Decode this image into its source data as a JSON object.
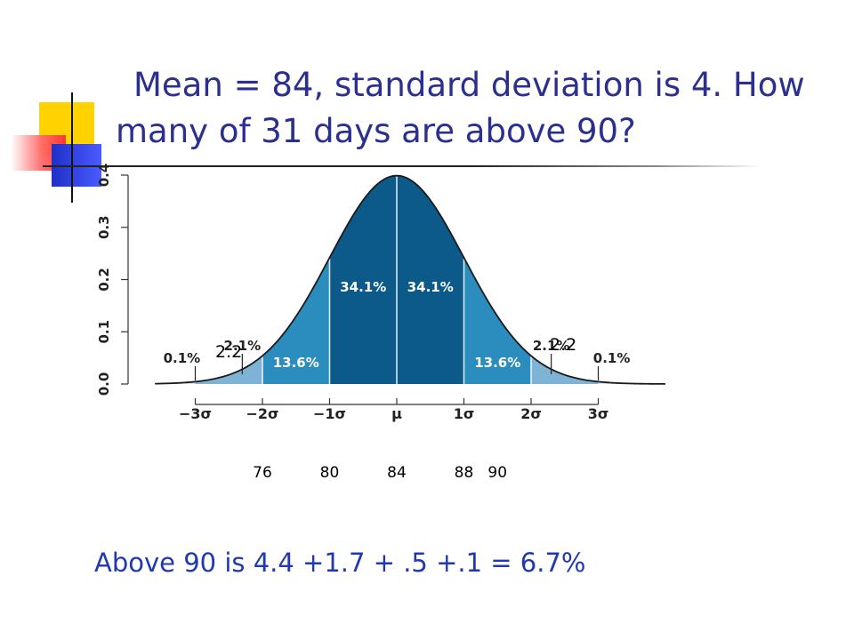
{
  "title": {
    "line1": "Mean = 84, standard deviation is 4. How",
    "line2": "many of 31 days are above 90?"
  },
  "chart_data": {
    "type": "area",
    "title": "",
    "xlabel": "",
    "ylabel": "",
    "x_range": [
      -3.6,
      4.0
    ],
    "ylim": [
      0,
      0.4
    ],
    "y_ticks": [
      "0.0",
      "0.1",
      "0.2",
      "0.3",
      "0.4"
    ],
    "x_ticks": [
      {
        "value": -3,
        "label": "−3σ"
      },
      {
        "value": -2,
        "label": "−2σ"
      },
      {
        "value": -1,
        "label": "−1σ"
      },
      {
        "value": 0,
        "label": "μ"
      },
      {
        "value": 1,
        "label": "1σ"
      },
      {
        "value": 2,
        "label": "2σ"
      },
      {
        "value": 3,
        "label": "3σ"
      }
    ],
    "regions": [
      {
        "from": -3,
        "to": -2,
        "label": "2.1%",
        "color": "#7fb3d5"
      },
      {
        "from": -2,
        "to": -1,
        "label": "13.6%",
        "color": "#2b8cbe"
      },
      {
        "from": -1,
        "to": 0,
        "label": "34.1%",
        "color": "#0b5a8a"
      },
      {
        "from": 0,
        "to": 1,
        "label": "34.1%",
        "color": "#0b5a8a"
      },
      {
        "from": 1,
        "to": 2,
        "label": "13.6%",
        "color": "#2b8cbe"
      },
      {
        "from": 2,
        "to": 3,
        "label": "2.1%",
        "color": "#7fb3d5"
      }
    ],
    "tail_labels": [
      {
        "at": -3,
        "label": "0.1%"
      },
      {
        "at": 3,
        "label": "0.1%"
      }
    ],
    "colors": {
      "outer_tail": "#d8e8f2",
      "curve": "#1a1a1a"
    }
  },
  "annotations": {
    "left": "2.2",
    "right": "2.2"
  },
  "bottom_values": [
    {
      "label": "76",
      "x": -2
    },
    {
      "label": "80",
      "x": -1
    },
    {
      "label": "84",
      "x": 0
    },
    {
      "label": "88",
      "x": 1
    },
    {
      "label": "90",
      "x": 1.5
    }
  ],
  "answer": "Above 90 is 4.4 +1.7 + .5 +.1 = 6.7%"
}
